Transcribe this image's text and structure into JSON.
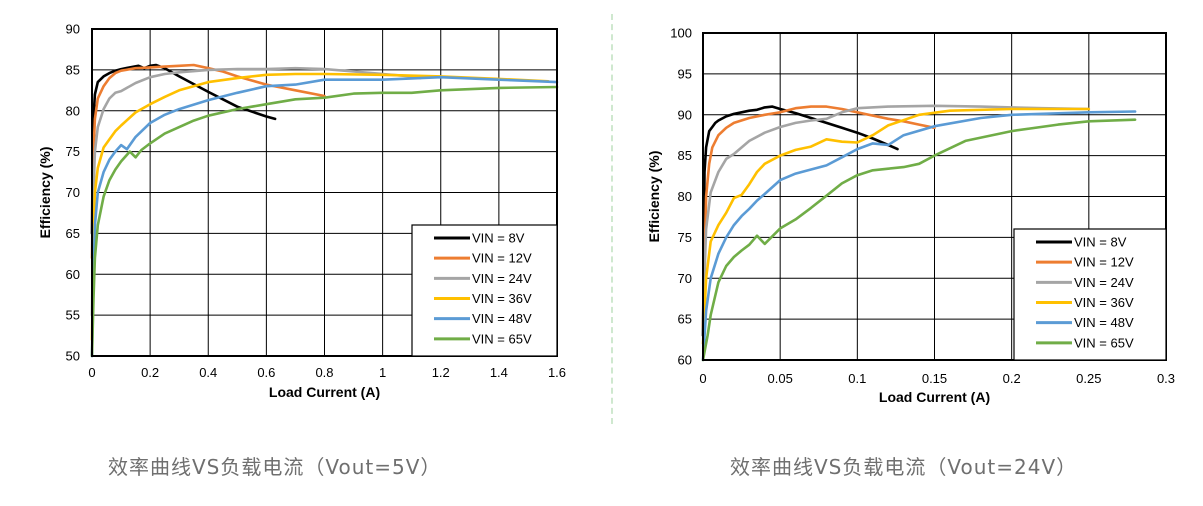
{
  "captions": [
    "效率曲线VS负载电流（Vout=5V）",
    "效率曲线VS负载电流（Vout=24V）"
  ],
  "series_colors": {
    "VIN = 8V": "#000000",
    "VIN = 12V": "#ed7d31",
    "VIN = 24V": "#a5a5a5",
    "VIN = 36V": "#ffc000",
    "VIN = 48V": "#5b9bd5",
    "VIN = 65V": "#70ad47"
  },
  "chart_data": [
    {
      "type": "line",
      "title": "",
      "xlabel": "Load Current (A)",
      "ylabel": "Efficiency (%)",
      "xlim": [
        0,
        1.6
      ],
      "ylim": [
        50,
        90
      ],
      "x_ticks": [
        "0",
        "0.2",
        "0.4",
        "0.6",
        "0.8",
        "1",
        "1.2",
        "1.4",
        "1.6"
      ],
      "y_ticks": [
        "50",
        "55",
        "60",
        "65",
        "70",
        "75",
        "80",
        "85",
        "90"
      ],
      "grid": true,
      "legend_position": "bottom-right",
      "series": [
        {
          "name": "VIN = 8V",
          "x": [
            0,
            0.003,
            0.01,
            0.02,
            0.04,
            0.06,
            0.08,
            0.1,
            0.13,
            0.16,
            0.18,
            0.2,
            0.22,
            0.25,
            0.3,
            0.4,
            0.5,
            0.6,
            0.63
          ],
          "y": [
            65,
            78,
            82,
            83.5,
            84.2,
            84.6,
            84.9,
            85.1,
            85.3,
            85.5,
            85.2,
            85.5,
            85.6,
            85.2,
            84.2,
            82.3,
            80.5,
            79.3,
            79
          ]
        },
        {
          "name": "VIN = 12V",
          "x": [
            0,
            0.005,
            0.01,
            0.02,
            0.04,
            0.06,
            0.08,
            0.1,
            0.15,
            0.2,
            0.25,
            0.3,
            0.35,
            0.4,
            0.45,
            0.5,
            0.55,
            0.6,
            0.7,
            0.8
          ],
          "y": [
            62,
            75,
            79,
            81.5,
            83,
            84,
            84.6,
            84.9,
            85.2,
            85.3,
            85.4,
            85.5,
            85.6,
            85.2,
            84.8,
            84.2,
            83.7,
            83.2,
            82.5,
            81.8
          ]
        },
        {
          "name": "VIN = 24V",
          "x": [
            0,
            0.005,
            0.01,
            0.02,
            0.04,
            0.06,
            0.08,
            0.1,
            0.15,
            0.2,
            0.25,
            0.3,
            0.4,
            0.5,
            0.6,
            0.7,
            0.8,
            0.9,
            1.0,
            1.1,
            1.13
          ],
          "y": [
            55,
            70,
            75,
            78,
            80.2,
            81.5,
            82.2,
            82.4,
            83.4,
            84.1,
            84.5,
            84.7,
            85.0,
            85.1,
            85.1,
            85.2,
            85.1,
            84.8,
            84.5,
            84.2,
            84.0
          ]
        },
        {
          "name": "VIN = 36V",
          "x": [
            0,
            0.005,
            0.01,
            0.02,
            0.04,
            0.06,
            0.08,
            0.1,
            0.15,
            0.2,
            0.25,
            0.3,
            0.4,
            0.5,
            0.6,
            0.7,
            0.8,
            1.0,
            1.2,
            1.4,
            1.57
          ],
          "y": [
            52,
            65,
            70,
            73,
            75.5,
            76.5,
            77.5,
            78.2,
            79.8,
            80.8,
            81.7,
            82.5,
            83.5,
            84.0,
            84.4,
            84.5,
            84.5,
            84.4,
            84.2,
            83.9,
            83.6
          ]
        },
        {
          "name": "VIN = 48V",
          "x": [
            0,
            0.005,
            0.01,
            0.02,
            0.04,
            0.06,
            0.08,
            0.1,
            0.12,
            0.15,
            0.2,
            0.25,
            0.3,
            0.4,
            0.5,
            0.6,
            0.7,
            0.8,
            0.9,
            1.0,
            1.2,
            1.4,
            1.6
          ],
          "y": [
            50,
            60,
            66,
            70,
            72.5,
            74,
            75,
            75.8,
            75.3,
            76.8,
            78.5,
            79.5,
            80.2,
            81.3,
            82.2,
            83,
            83.2,
            83.8,
            83.8,
            83.8,
            84.1,
            83.8,
            83.5
          ]
        },
        {
          "name": "VIN = 65V",
          "x": [
            0,
            0.005,
            0.01,
            0.02,
            0.04,
            0.06,
            0.08,
            0.1,
            0.13,
            0.15,
            0.17,
            0.2,
            0.25,
            0.3,
            0.35,
            0.4,
            0.5,
            0.6,
            0.7,
            0.8,
            0.9,
            1.0,
            1.1,
            1.2,
            1.4,
            1.6
          ],
          "y": [
            50,
            57,
            62,
            66,
            69.5,
            71.5,
            72.8,
            73.8,
            75,
            74.3,
            75.2,
            76,
            77.2,
            78,
            78.8,
            79.4,
            80.2,
            80.8,
            81.4,
            81.6,
            82.1,
            82.2,
            82.2,
            82.5,
            82.8,
            82.9
          ]
        }
      ]
    },
    {
      "type": "line",
      "title": "",
      "xlabel": "Load Current (A)",
      "ylabel": "Efficiency (%)",
      "xlim": [
        0,
        0.3
      ],
      "ylim": [
        60,
        100
      ],
      "x_ticks": [
        "0",
        "0.05",
        "0.1",
        "0.15",
        "0.2",
        "0.25",
        "0.3"
      ],
      "y_ticks": [
        "60",
        "65",
        "70",
        "75",
        "80",
        "85",
        "90",
        "95",
        "100"
      ],
      "grid": true,
      "legend_position": "bottom-right",
      "series": [
        {
          "name": "VIN = 8V",
          "x": [
            0,
            0.001,
            0.002,
            0.004,
            0.006,
            0.008,
            0.01,
            0.015,
            0.02,
            0.025,
            0.03,
            0.035,
            0.04,
            0.045,
            0.05,
            0.06,
            0.07,
            0.08,
            0.09,
            0.1,
            0.11,
            0.12,
            0.126
          ],
          "y": [
            63,
            83,
            86,
            88,
            88.5,
            89,
            89.3,
            89.8,
            90.1,
            90.3,
            90.5,
            90.6,
            90.9,
            91,
            90.7,
            90.2,
            89.6,
            89,
            88.4,
            87.8,
            87.1,
            86.3,
            85.8
          ]
        },
        {
          "name": "VIN = 12V",
          "x": [
            0,
            0.002,
            0.004,
            0.006,
            0.01,
            0.015,
            0.02,
            0.03,
            0.04,
            0.05,
            0.06,
            0.07,
            0.08,
            0.09,
            0.1,
            0.11,
            0.12,
            0.13,
            0.14,
            0.15
          ],
          "y": [
            64,
            80,
            84,
            86,
            87.5,
            88.4,
            89,
            89.6,
            90,
            90.3,
            90.8,
            91,
            91,
            90.7,
            90.3,
            89.9,
            89.5,
            89.2,
            88.8,
            88.4
          ]
        },
        {
          "name": "VIN = 24V",
          "x": [
            0,
            0.002,
            0.005,
            0.01,
            0.015,
            0.02,
            0.03,
            0.04,
            0.05,
            0.06,
            0.07,
            0.08,
            0.09,
            0.1,
            0.12,
            0.15,
            0.18,
            0.2,
            0.22,
            0.25
          ],
          "y": [
            65,
            76,
            80.5,
            83,
            84.6,
            85.2,
            86.8,
            87.8,
            88.5,
            89,
            89.3,
            89.5,
            90.3,
            90.8,
            91,
            91.1,
            91,
            90.9,
            90.8,
            90.7
          ]
        },
        {
          "name": "VIN = 36V",
          "x": [
            0,
            0.002,
            0.005,
            0.01,
            0.015,
            0.02,
            0.025,
            0.03,
            0.035,
            0.04,
            0.05,
            0.06,
            0.07,
            0.08,
            0.09,
            0.1,
            0.11,
            0.12,
            0.14,
            0.16,
            0.2,
            0.25
          ],
          "y": [
            62,
            70,
            74.5,
            76.5,
            78,
            79.8,
            80.2,
            81.5,
            83,
            84,
            85,
            85.7,
            86.1,
            87,
            86.7,
            86.6,
            87.5,
            88.7,
            90,
            90.5,
            90.7,
            90.7
          ]
        },
        {
          "name": "VIN = 48V",
          "x": [
            0,
            0.002,
            0.005,
            0.01,
            0.015,
            0.02,
            0.025,
            0.03,
            0.035,
            0.04,
            0.05,
            0.06,
            0.07,
            0.08,
            0.09,
            0.1,
            0.11,
            0.12,
            0.13,
            0.15,
            0.18,
            0.2,
            0.25,
            0.28
          ],
          "y": [
            60,
            66,
            70,
            73,
            75,
            76.5,
            77.6,
            78.5,
            79.5,
            80.3,
            82,
            82.8,
            83.3,
            83.8,
            84.8,
            85.8,
            86.5,
            86.3,
            87.5,
            88.6,
            89.6,
            90,
            90.3,
            90.4
          ]
        },
        {
          "name": "VIN = 65V",
          "x": [
            0,
            0.003,
            0.005,
            0.01,
            0.015,
            0.02,
            0.025,
            0.03,
            0.035,
            0.04,
            0.05,
            0.06,
            0.07,
            0.08,
            0.09,
            0.1,
            0.11,
            0.12,
            0.13,
            0.14,
            0.15,
            0.17,
            0.2,
            0.23,
            0.25,
            0.28
          ],
          "y": [
            60,
            63,
            65.5,
            69.5,
            71.5,
            72.6,
            73.4,
            74.1,
            75.2,
            74.2,
            76.1,
            77.2,
            78.6,
            80.1,
            81.6,
            82.6,
            83.2,
            83.4,
            83.6,
            84,
            85,
            86.8,
            88,
            88.8,
            89.2,
            89.4
          ]
        }
      ]
    }
  ]
}
